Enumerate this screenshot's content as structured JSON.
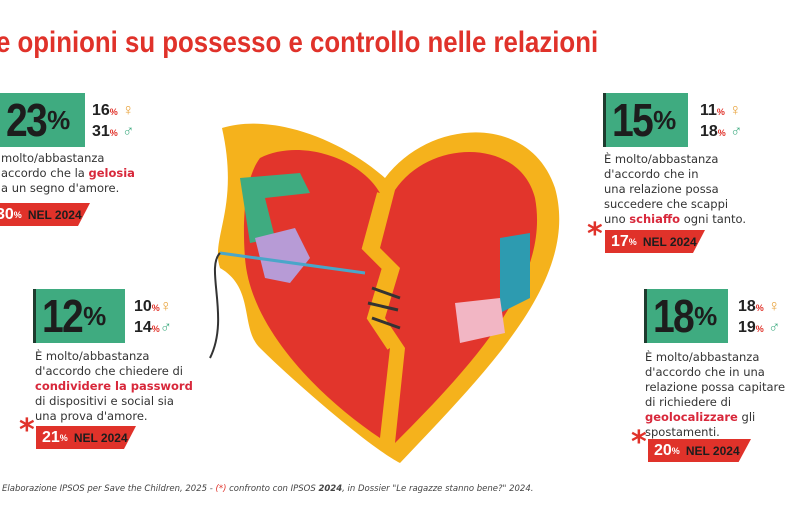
{
  "title": "e opinioni su possesso e controllo nelle relazioni",
  "colors": {
    "accent": "#e0322a",
    "green": "#3fab80",
    "heart_red": "#e2352c",
    "heart_yellow": "#f5b21c"
  },
  "cards": [
    {
      "value": "23",
      "pct": "%",
      "female": "16",
      "male": "31",
      "text": [
        "molto/abbastanza",
        "accordo che la ",
        "a un segno d'amore."
      ],
      "highlight": "gelosia",
      "prev": "30",
      "prev_label": "NEL 2024"
    },
    {
      "value": "12",
      "pct": "%",
      "female": "10",
      "male": "14",
      "text": [
        "È molto/abbastanza",
        "d'accordo che chiedere di",
        "di dispositivi e social sia",
        "una prova d'amore."
      ],
      "highlight": "condividere la password",
      "prev": "21",
      "prev_label": "NEL 2024"
    },
    {
      "value": "15",
      "pct": "%",
      "female": "11",
      "male": "18",
      "text": [
        "È molto/abbastanza",
        "d'accordo che in",
        "una relazione possa",
        "succedere che scappi",
        "uno ",
        " ogni tanto."
      ],
      "highlight": "schiaffo",
      "prev": "17",
      "prev_label": "NEL 2024"
    },
    {
      "value": "18",
      "pct": "%",
      "female": "18",
      "male": "19",
      "text": [
        "È molto/abbastanza",
        "d'accordo che in una",
        "relazione possa capitare",
        "di richiedere di",
        " gli",
        "spostamenti."
      ],
      "highlight": "geolocalizzare",
      "prev": "20",
      "prev_label": "NEL 2024"
    }
  ],
  "pct_symbol": "%",
  "female_symbol": "♀",
  "male_symbol": "♂",
  "asterisk": "*",
  "footer": {
    "a": "Elaborazione IPSOS per Save the Children, 2025 - ",
    "b": "(*)",
    "c": " confronto con IPSOS ",
    "d": "2024",
    "e": ", in Dossier \"Le ragazze stanno bene?\" 2024."
  }
}
